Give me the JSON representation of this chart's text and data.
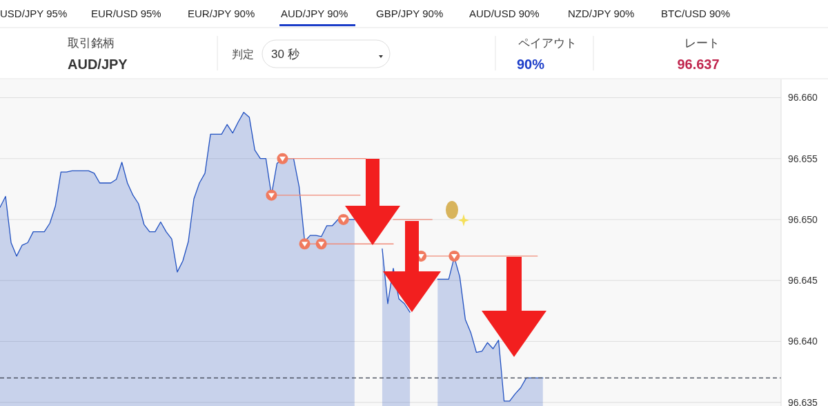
{
  "chart_data": {
    "type": "area",
    "categories": [
      null,
      null,
      null,
      null,
      null,
      null,
      null,
      null,
      null,
      null,
      null,
      null,
      null,
      null,
      null,
      null,
      null,
      null,
      null,
      null,
      null,
      null,
      null,
      null,
      null,
      null,
      null,
      null,
      null,
      null,
      null,
      null,
      null,
      null,
      null,
      null,
      null,
      null,
      null,
      null,
      null,
      null,
      null,
      null,
      null,
      null,
      null,
      null,
      null,
      null,
      null,
      null,
      null,
      null,
      null,
      null,
      null,
      null,
      null,
      null,
      null,
      null,
      null,
      null,
      null,
      null,
      null,
      null,
      null,
      null,
      null,
      null,
      null,
      null,
      null,
      null,
      null,
      null,
      null,
      null,
      null,
      null,
      null,
      null,
      null,
      null,
      null,
      null,
      null,
      null,
      null,
      null,
      null,
      null,
      null,
      null,
      null,
      null,
      null,
      null,
      null,
      null,
      null,
      null,
      null,
      null,
      null,
      null,
      null,
      null,
      null,
      null,
      null,
      null,
      null,
      null,
      null,
      null,
      null,
      null,
      null,
      null,
      null,
      null,
      null,
      null,
      null,
      null,
      null,
      null,
      null,
      null,
      null,
      null,
      null,
      null,
      null,
      null,
      null,
      null,
      null,
      null
    ],
    "series": [
      {
        "color": "#1f4fc0",
        "values": [
          96.651,
          96.6519,
          96.6481,
          96.647,
          96.6479,
          96.6481,
          96.649,
          96.649,
          96.649,
          96.6497,
          96.6511,
          96.6539,
          96.6539,
          96.654,
          96.654,
          96.654,
          96.654,
          96.6538,
          96.653,
          96.653,
          96.653,
          96.6533,
          96.6547,
          96.653,
          96.652,
          96.6513,
          96.6496,
          96.649,
          96.649,
          96.6498,
          96.649,
          96.6484,
          96.6457,
          96.6466,
          96.6482,
          96.6517,
          96.653,
          96.6538,
          96.657,
          96.657,
          96.657,
          96.6578,
          96.6571,
          96.658,
          96.6588,
          96.6584,
          96.6557,
          96.655,
          96.655,
          96.652,
          96.6546,
          96.655,
          96.655,
          96.655,
          96.6527,
          96.6482,
          96.6487,
          96.6487,
          96.6486,
          96.6495,
          96.6495,
          96.65,
          96.65,
          96.65,
          96.65,
          null,
          null,
          null,
          null,
          96.6476,
          96.6431,
          96.646,
          96.6435,
          96.6431,
          96.6424,
          null,
          null,
          null,
          null,
          96.6451,
          96.6451,
          96.6451,
          96.6469,
          96.6453,
          96.6418,
          96.6407,
          96.6391,
          96.6392,
          96.6399,
          96.6394,
          96.6401,
          96.6351,
          96.6351,
          96.6357,
          96.6362,
          96.637,
          96.637,
          96.637,
          96.637,
          null,
          null,
          null,
          null,
          null,
          null,
          null,
          null,
          null,
          null,
          null,
          null,
          null,
          null,
          null,
          null,
          null,
          null,
          null,
          null,
          null,
          null,
          null,
          null,
          null,
          null,
          null,
          null,
          null,
          null,
          null,
          null,
          null,
          null,
          null,
          null,
          null,
          null,
          null,
          null,
          null,
          null,
          null
        ]
      },
      {
        "type": "line",
        "color": "#f08a78",
        "values": [
          null,
          null,
          null,
          null,
          null,
          null,
          null,
          null,
          null,
          null,
          null,
          null,
          null,
          null,
          null,
          null,
          null,
          null,
          null,
          null,
          null,
          null,
          null,
          null,
          null,
          null,
          null,
          null,
          null,
          null,
          null,
          null,
          null,
          null,
          null,
          null,
          null,
          null,
          null,
          null,
          null,
          null,
          null,
          null,
          null,
          null,
          null,
          null,
          null,
          96.652,
          96.652,
          96.652,
          96.652,
          96.652,
          96.652,
          96.652,
          96.652,
          96.652,
          96.652,
          96.652,
          96.652,
          96.652,
          96.652,
          96.652,
          96.652,
          96.652,
          null,
          null,
          null,
          null,
          null,
          null,
          null,
          null,
          null,
          null,
          96.647,
          96.647,
          96.647,
          96.647,
          96.647,
          96.647,
          96.647,
          96.647,
          96.647,
          96.647,
          96.647,
          96.647,
          96.647,
          96.647,
          96.647,
          96.647,
          96.647,
          96.647,
          96.647,
          96.647,
          96.647,
          96.647,
          null,
          null,
          null,
          null,
          null,
          null,
          null,
          null,
          null,
          null,
          null,
          null,
          null,
          null,
          null,
          null,
          null,
          null,
          null,
          null,
          null,
          null,
          null,
          null,
          null,
          null,
          null,
          null,
          null,
          null,
          null,
          null,
          null,
          null,
          null,
          null,
          null,
          null,
          null,
          null,
          null,
          null,
          null,
          null
        ]
      },
      {
        "type": "line",
        "color": "#f08a78",
        "values": [
          null,
          null,
          null,
          null,
          null,
          null,
          null,
          null,
          null,
          null,
          null,
          null,
          null,
          null,
          null,
          null,
          null,
          null,
          null,
          null,
          null,
          null,
          null,
          null,
          null,
          null,
          null,
          null,
          null,
          null,
          null,
          null,
          null,
          null,
          null,
          null,
          null,
          null,
          null,
          null,
          null,
          null,
          null,
          null,
          null,
          null,
          null,
          null,
          null,
          null,
          null,
          96.655,
          96.655,
          96.655,
          96.655,
          96.655,
          96.655,
          96.655,
          96.655,
          96.655,
          96.655,
          96.655,
          96.655,
          96.655,
          96.655,
          96.655,
          96.655,
          null,
          null,
          null,
          null,
          null,
          null,
          null,
          null,
          null,
          null,
          null,
          null,
          null,
          null,
          null,
          null,
          null,
          null,
          null,
          null,
          null,
          null,
          null,
          null,
          null,
          null,
          null,
          null,
          null,
          null,
          null,
          null,
          null,
          null,
          null,
          null,
          null,
          null,
          null,
          null,
          null,
          null,
          null,
          null,
          null,
          null,
          null,
          null,
          null,
          null,
          null,
          null,
          null,
          null,
          null,
          null,
          null,
          null,
          null,
          null,
          null,
          null,
          null,
          null,
          null,
          null,
          null,
          null,
          null,
          null,
          null,
          null,
          null,
          null,
          null
        ]
      },
      {
        "type": "line",
        "color": "#f08a78",
        "values": [
          null,
          null,
          null,
          null,
          null,
          null,
          null,
          null,
          null,
          null,
          null,
          null,
          null,
          null,
          null,
          null,
          null,
          null,
          null,
          null,
          null,
          null,
          null,
          null,
          null,
          null,
          null,
          null,
          null,
          null,
          null,
          null,
          null,
          null,
          null,
          null,
          null,
          null,
          null,
          null,
          null,
          null,
          null,
          null,
          null,
          null,
          null,
          null,
          null,
          null,
          null,
          null,
          null,
          null,
          null,
          null,
          null,
          null,
          null,
          null,
          null,
          null,
          null,
          null,
          null,
          null,
          null,
          null,
          null,
          null,
          null,
          96.65,
          96.65,
          96.65,
          96.65,
          96.65,
          96.65,
          96.65,
          96.65,
          null,
          null,
          null,
          null,
          null,
          null,
          null,
          null,
          null,
          null,
          null,
          null,
          null,
          null,
          null,
          null,
          null,
          null,
          null,
          null,
          null,
          null,
          null,
          null,
          null,
          null,
          null,
          null,
          null,
          null,
          null,
          null,
          null,
          null,
          null,
          null,
          null,
          null,
          null,
          null,
          null,
          null,
          null,
          null,
          null,
          null,
          null,
          null,
          null,
          null,
          null,
          null,
          null,
          null,
          null,
          null,
          null,
          null,
          null,
          null,
          null,
          null,
          null
        ]
      },
      {
        "type": "line",
        "color": "#f08a78",
        "values": [
          null,
          null,
          null,
          null,
          null,
          null,
          null,
          null,
          null,
          null,
          null,
          null,
          null,
          null,
          null,
          null,
          null,
          null,
          null,
          null,
          null,
          null,
          null,
          null,
          null,
          null,
          null,
          null,
          null,
          null,
          null,
          null,
          null,
          null,
          null,
          null,
          null,
          null,
          null,
          null,
          null,
          null,
          null,
          null,
          null,
          null,
          null,
          null,
          null,
          null,
          null,
          null,
          null,
          null,
          null,
          96.648,
          96.648,
          96.648,
          96.648,
          96.648,
          96.648,
          96.648,
          96.648,
          96.648,
          96.648,
          96.648,
          96.648,
          96.648,
          96.648,
          96.648,
          96.648,
          96.648,
          null,
          null,
          null,
          null,
          null,
          null,
          null,
          null,
          null,
          null,
          null,
          null,
          null,
          null,
          null,
          null,
          null,
          null,
          null,
          null,
          null,
          null,
          null,
          null,
          null,
          null,
          null,
          null,
          null,
          null,
          null,
          null,
          null,
          null,
          null,
          null,
          null,
          null,
          null,
          null,
          null,
          null,
          null,
          null,
          null,
          null,
          null,
          null,
          null,
          null,
          null,
          null,
          null,
          null,
          null,
          null,
          null,
          null,
          null,
          null,
          null,
          null,
          null,
          null,
          null,
          null,
          null,
          null,
          null,
          null
        ]
      },
      {
        "type": "scatter",
        "color": "#f07a5f",
        "marker": "circle",
        "values": [
          null,
          null,
          null,
          null,
          null,
          null,
          null,
          null,
          null,
          null,
          null,
          null,
          null,
          null,
          null,
          null,
          null,
          null,
          null,
          null,
          null,
          null,
          null,
          null,
          null,
          null,
          null,
          null,
          null,
          null,
          null,
          null,
          null,
          null,
          null,
          null,
          null,
          null,
          null,
          null,
          null,
          null,
          null,
          null,
          null,
          null,
          null,
          null,
          null,
          96.652,
          null,
          96.655,
          null,
          null,
          null,
          96.648,
          null,
          null,
          96.648,
          null,
          null,
          null,
          96.65,
          null,
          null,
          null,
          null,
          null,
          null,
          null,
          null,
          null,
          null,
          null,
          null,
          null,
          96.647,
          null,
          null,
          null,
          null,
          null,
          96.647,
          null,
          null,
          null,
          null,
          null,
          null,
          null,
          null,
          null,
          null,
          null,
          null,
          null,
          null,
          null,
          null,
          null,
          null,
          null,
          null,
          null,
          null,
          null,
          null,
          null,
          null,
          null,
          null,
          null,
          null,
          null,
          null,
          null,
          null,
          null,
          null,
          null,
          null,
          null,
          null,
          null,
          null,
          null,
          null,
          null,
          null,
          null,
          null,
          null,
          null,
          null,
          null,
          null,
          null,
          null,
          null,
          null,
          null,
          null
        ]
      }
    ],
    "ylim": [
      96.6347,
      96.6615
    ],
    "yticks": [
      {
        "value": 96.635,
        "label": "96.635"
      },
      {
        "value": 96.64,
        "label": "96.640"
      },
      {
        "value": 96.645,
        "label": "96.645"
      },
      {
        "value": 96.65,
        "label": "96.650"
      },
      {
        "value": 96.655,
        "label": "96.655"
      },
      {
        "value": 96.66,
        "label": "96.660"
      }
    ],
    "tick_labels": "y",
    "grid": "y",
    "ref_lines": [
      {
        "axis": "y",
        "value": 96.637,
        "color": "#333a48",
        "line_style": "dashed"
      }
    ],
    "annotations": [
      "USD/JPY 95%",
      "EUR/USD 95%",
      "EUR/JPY 90%",
      "AUD/JPY 90%",
      "GBP/JPY 90%",
      "AUD/USD 90%",
      "NZD/JPY 90%",
      "BTC/USD 90%",
      "取引銘柄",
      "AUD/JPY",
      "判定",
      "30 秒",
      "ペイアウト",
      "90%",
      "レート",
      "96.637"
    ]
  }
}
